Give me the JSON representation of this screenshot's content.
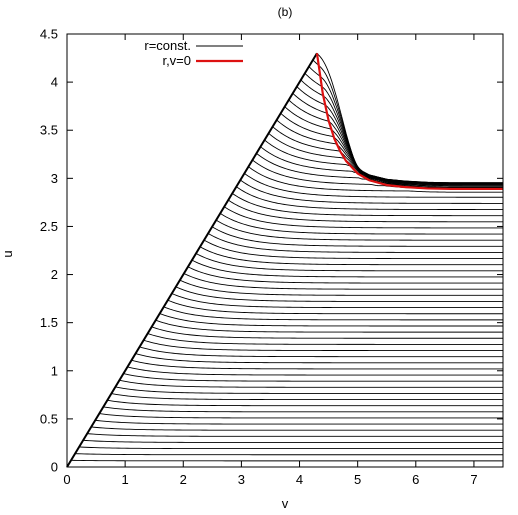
{
  "chart_data": {
    "type": "line",
    "title": "(b)",
    "xlabel": "v",
    "ylabel": "u",
    "xlim": [
      0,
      7.5
    ],
    "ylim": [
      0,
      4.5
    ],
    "xticks": [
      0,
      1,
      2,
      3,
      4,
      5,
      6,
      7
    ],
    "yticks": [
      0,
      0.5,
      1,
      1.5,
      2,
      2.5,
      3,
      3.5,
      4,
      4.5
    ],
    "xtick_labels": [
      "0",
      "1",
      "2",
      "3",
      "4",
      "5",
      "6",
      "7"
    ],
    "ytick_labels": [
      "0",
      "0.5",
      "1",
      "1.5",
      "2",
      "2.5",
      "3",
      "3.5",
      "4",
      "4.5"
    ],
    "grid": false,
    "legend_position": "top-left",
    "apex": {
      "v": 4.3,
      "u": 4.3
    },
    "series": [
      {
        "name": "r=const.",
        "color": "#000000",
        "description_type": "family of constant-r curves",
        "count": 62
      },
      {
        "name": "r,v=0",
        "color": "#dd1111",
        "x": [
          4.3,
          4.4,
          4.5,
          4.6,
          4.7,
          4.8,
          5.0,
          5.2,
          5.5,
          5.8,
          6.2,
          6.6,
          7.0,
          7.5
        ],
        "y": [
          4.3,
          3.88,
          3.6,
          3.41,
          3.28,
          3.18,
          3.05,
          2.98,
          2.93,
          2.91,
          2.895,
          2.89,
          2.89,
          2.89
        ]
      }
    ]
  }
}
